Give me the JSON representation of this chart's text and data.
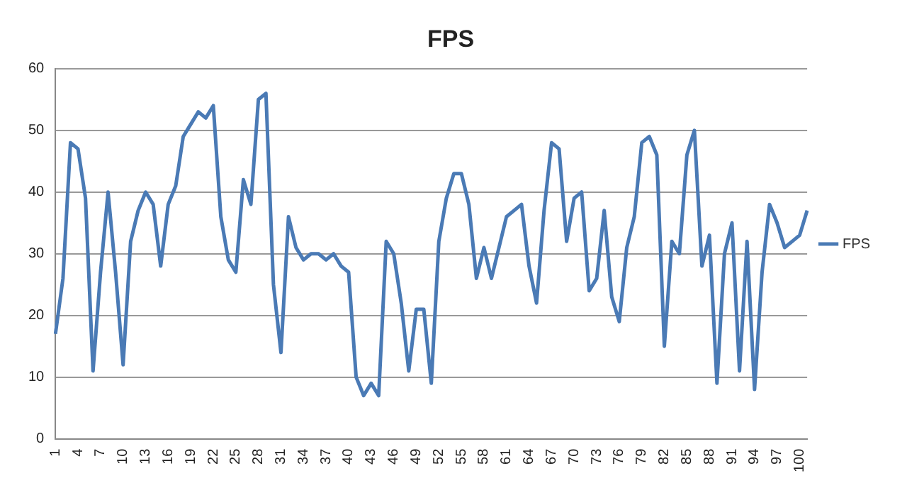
{
  "chart_data": {
    "type": "line",
    "title": "FPS",
    "categories": [
      "1",
      null,
      null,
      "4",
      null,
      null,
      "7",
      null,
      null,
      "10",
      null,
      null,
      "13",
      null,
      null,
      "16",
      null,
      null,
      "19",
      null,
      null,
      "22",
      null,
      null,
      "25",
      null,
      null,
      "28",
      null,
      null,
      "31",
      null,
      null,
      "34",
      null,
      null,
      "37",
      null,
      null,
      "40",
      null,
      null,
      "43",
      null,
      null,
      "46",
      null,
      null,
      "49",
      null,
      null,
      "52",
      null,
      null,
      "55",
      null,
      null,
      "58",
      null,
      null,
      "61",
      null,
      null,
      "64",
      null,
      null,
      "67",
      null,
      null,
      "70",
      null,
      null,
      "73",
      null,
      null,
      "76",
      null,
      null,
      "79",
      null,
      null,
      "82",
      null,
      null,
      "85",
      null,
      null,
      "88",
      null,
      null,
      "91",
      null,
      null,
      "94",
      null,
      null,
      "97",
      null,
      null,
      "100",
      null
    ],
    "series": [
      {
        "name": "FPS",
        "color": "#4a7ab5",
        "values": [
          17,
          26,
          48,
          47,
          39,
          11,
          27,
          40,
          27,
          12,
          32,
          37,
          40,
          38,
          28,
          38,
          41,
          49,
          51,
          53,
          52,
          54,
          36,
          29,
          27,
          42,
          38,
          55,
          56,
          25,
          14,
          36,
          31,
          29,
          30,
          30,
          29,
          30,
          28,
          27,
          10,
          7,
          9,
          7,
          32,
          30,
          22,
          11,
          21,
          21,
          9,
          32,
          39,
          43,
          43,
          38,
          26,
          31,
          26,
          31,
          36,
          37,
          38,
          28,
          22,
          37,
          48,
          47,
          32,
          39,
          40,
          24,
          26,
          37,
          23,
          19,
          31,
          36,
          48,
          49,
          46,
          15,
          32,
          30,
          46,
          50,
          28,
          33,
          9,
          30,
          35,
          11,
          32,
          8,
          27,
          38,
          35,
          31,
          32,
          33,
          37
        ]
      }
    ],
    "ylim": [
      0,
      60
    ],
    "yticks": [
      0,
      10,
      20,
      30,
      40,
      50,
      60
    ],
    "grid": "y",
    "legend": "right",
    "marker": "none",
    "line_style": "solid"
  }
}
